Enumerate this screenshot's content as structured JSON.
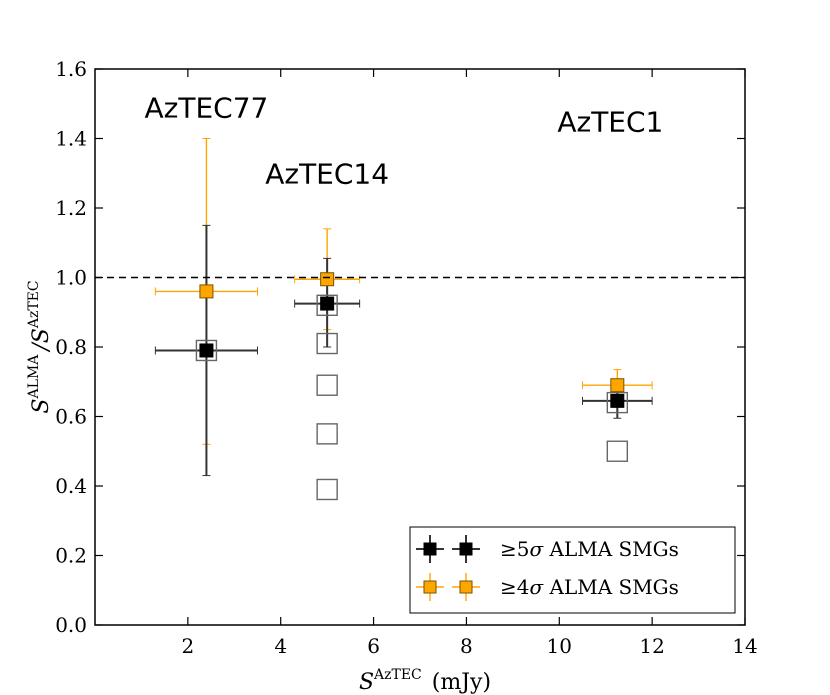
{
  "chart_data": {
    "type": "scatter",
    "title": "",
    "xlabel": "S^AzTEC (mJy)",
    "ylabel": "S^ALMA / S^AzTEC",
    "xlim": [
      0,
      14
    ],
    "ylim": [
      0.0,
      1.6
    ],
    "xticks": [
      2,
      4,
      6,
      8,
      10,
      12,
      14
    ],
    "yticks": [
      0.0,
      0.2,
      0.4,
      0.6,
      0.8,
      1.0,
      1.2,
      1.4,
      1.6
    ],
    "reference_line": {
      "y": 1.0,
      "style": "dashed"
    },
    "grid": false,
    "legend_position": "bottom-right",
    "axis_labels": {
      "x_main": "S",
      "x_sup": "AzTEC",
      "x_unit": "(mJy)",
      "y_num_main": "S",
      "y_num_sup": "ALMA",
      "y_den_main": "/S",
      "y_den_sup": "AzTEC"
    },
    "annotations": [
      {
        "text": "AzTEC77",
        "x": 2.4,
        "y": 1.46
      },
      {
        "text": "AzTEC14",
        "x": 5.0,
        "y": 1.27
      },
      {
        "text": "AzTEC1",
        "x": 11.1,
        "y": 1.42
      }
    ],
    "series": [
      {
        "name": "≥5σ ALMA SMGs",
        "color": "#000000",
        "points": [
          {
            "x": 2.4,
            "y": 0.79,
            "xerr": 1.1,
            "yerr_low": 0.36,
            "yerr_high": 0.36
          },
          {
            "x": 5.0,
            "y": 0.925,
            "xerr": 0.7,
            "yerr_low": 0.125,
            "yerr_high": 0.13
          },
          {
            "x": 11.25,
            "y": 0.645,
            "xerr": 0.75,
            "yerr_low": 0.05,
            "yerr_high": 0.05
          }
        ]
      },
      {
        "name": "≥4σ ALMA SMGs",
        "color": "#FFA500",
        "points": [
          {
            "x": 2.4,
            "y": 0.96,
            "xerr": 1.1,
            "yerr_low": 0.44,
            "yerr_high": 0.44
          },
          {
            "x": 5.0,
            "y": 0.995,
            "xerr": 0.7,
            "yerr_low": 0.145,
            "yerr_high": 0.145
          },
          {
            "x": 11.25,
            "y": 0.69,
            "xerr": 0.75,
            "yerr_low": 0.045,
            "yerr_high": 0.045
          }
        ]
      },
      {
        "name": "open squares",
        "color": "#666666",
        "points": [
          {
            "x": 2.4,
            "y": 0.79
          },
          {
            "x": 5.0,
            "y": 0.92
          },
          {
            "x": 5.0,
            "y": 0.81
          },
          {
            "x": 5.0,
            "y": 0.69
          },
          {
            "x": 5.0,
            "y": 0.55
          },
          {
            "x": 5.0,
            "y": 0.39
          },
          {
            "x": 11.25,
            "y": 0.64
          },
          {
            "x": 11.25,
            "y": 0.5
          }
        ]
      }
    ],
    "legend": [
      {
        "label_prefix": "≥5",
        "label_sigma": "σ",
        "label_rest": " ALMA SMGs",
        "color": "#000000"
      },
      {
        "label_prefix": "≥4",
        "label_sigma": "σ",
        "label_rest": " ALMA SMGs",
        "color": "#FFA500"
      }
    ]
  }
}
